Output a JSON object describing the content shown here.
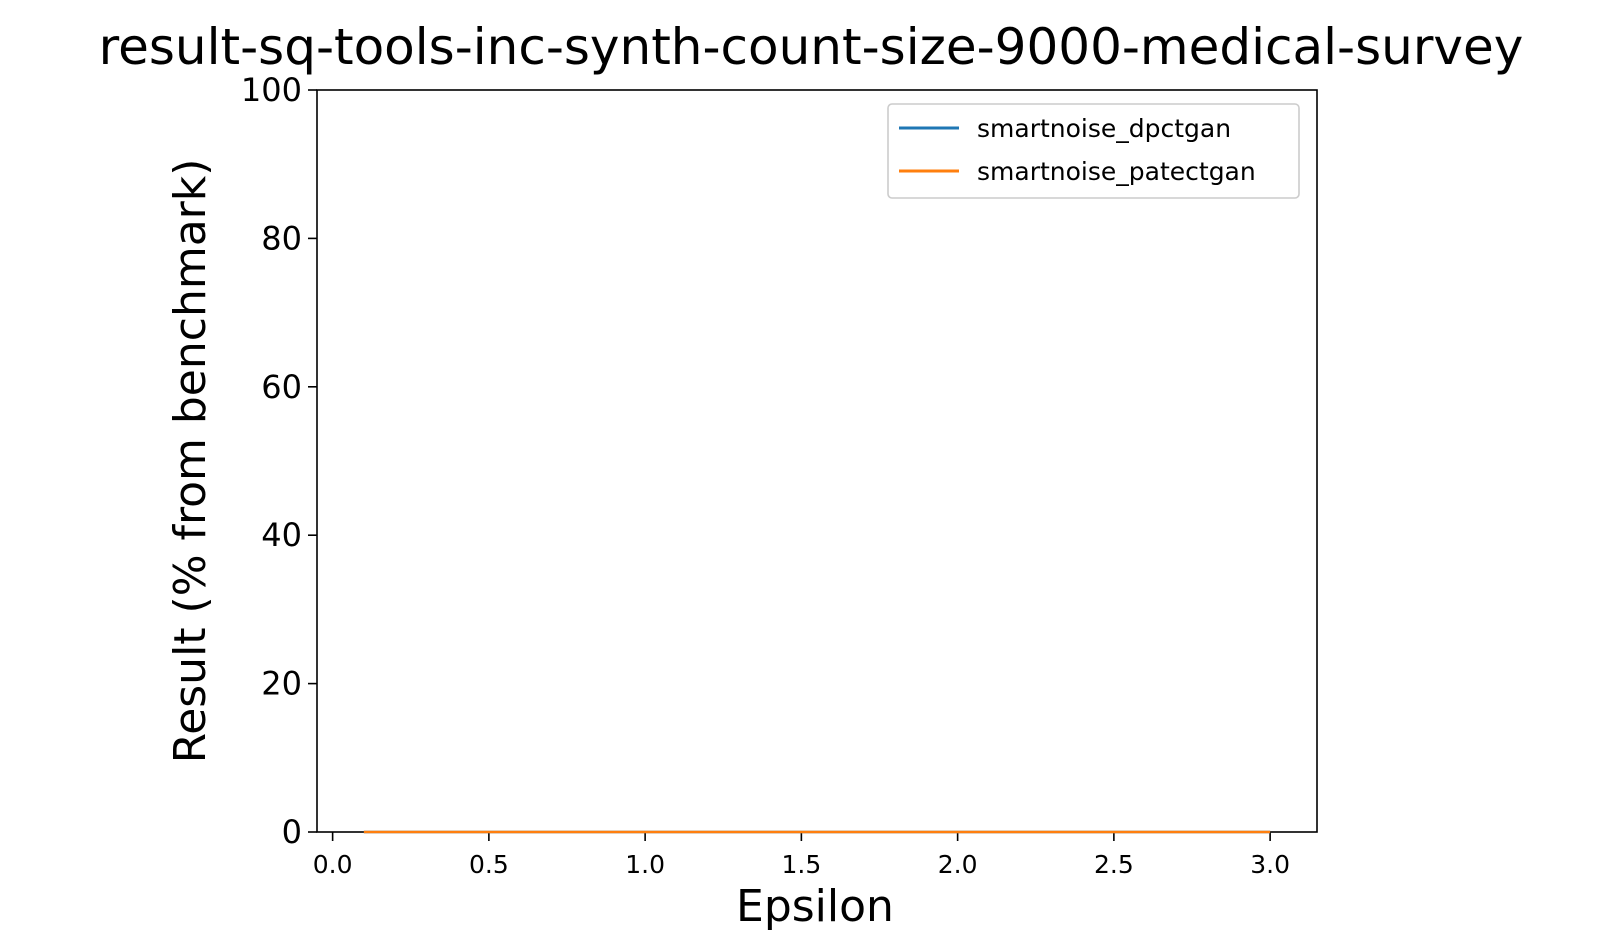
{
  "chart_data": {
    "type": "line",
    "title": "result-sq-tools-inc-synth-count-size-9000-medical-survey",
    "xlabel": "Epsilon",
    "ylabel": "Result (% from benchmark)",
    "xlim": [
      -0.05,
      3.15
    ],
    "ylim": [
      0,
      100
    ],
    "xticks": [
      0.0,
      0.5,
      1.0,
      1.5,
      2.0,
      2.5,
      3.0
    ],
    "xtick_labels": [
      "0.0",
      "0.5",
      "1.0",
      "1.5",
      "2.0",
      "2.5",
      "3.0"
    ],
    "yticks": [
      0,
      20,
      40,
      60,
      80,
      100
    ],
    "ytick_labels": [
      "0",
      "20",
      "40",
      "60",
      "80",
      "100"
    ],
    "grid": false,
    "legend_position": "top-right",
    "series": [
      {
        "name": "smartnoise_dpctgan",
        "color": "#1f77b4",
        "x": [
          0.1,
          3.0
        ],
        "y": [
          0,
          0
        ]
      },
      {
        "name": "smartnoise_patectgan",
        "color": "#ff7f0e",
        "x": [
          0.1,
          3.0
        ],
        "y": [
          0,
          0
        ]
      }
    ]
  }
}
